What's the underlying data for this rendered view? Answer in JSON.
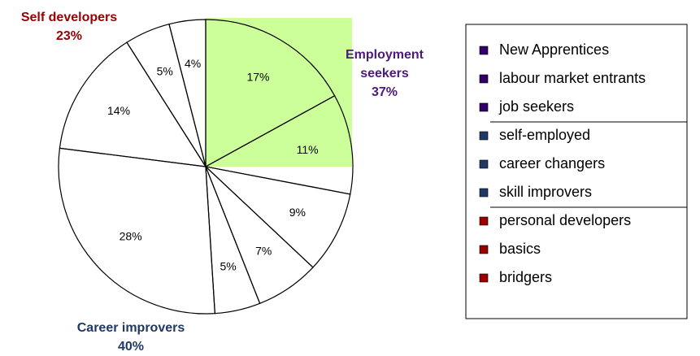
{
  "chart_data": {
    "type": "pie",
    "categories": [
      "New Apprentices",
      "labour market entrants",
      "job seekers",
      "self-employed",
      "career changers",
      "skill improvers",
      "personal developers",
      "basics",
      "bridgers"
    ],
    "values": [
      17,
      11,
      9,
      7,
      5,
      28,
      14,
      5,
      4
    ],
    "value_labels": [
      "17%",
      "11%",
      "9%",
      "7%",
      "5%",
      "28%",
      "14%",
      "5%",
      "4%"
    ],
    "colors": [
      "#330066",
      "#330066",
      "#330066",
      "#1f3864",
      "#1f3864",
      "#1f3864",
      "#990000",
      "#990000",
      "#990000"
    ],
    "groups": [
      {
        "name": "Employment seekers",
        "label": "37%",
        "color": "#4b1a7a"
      },
      {
        "name": "Career improvers",
        "label": "40%",
        "color": "#1f3864"
      },
      {
        "name": "Self developers",
        "label": "23%",
        "color": "#990000"
      }
    ]
  }
}
